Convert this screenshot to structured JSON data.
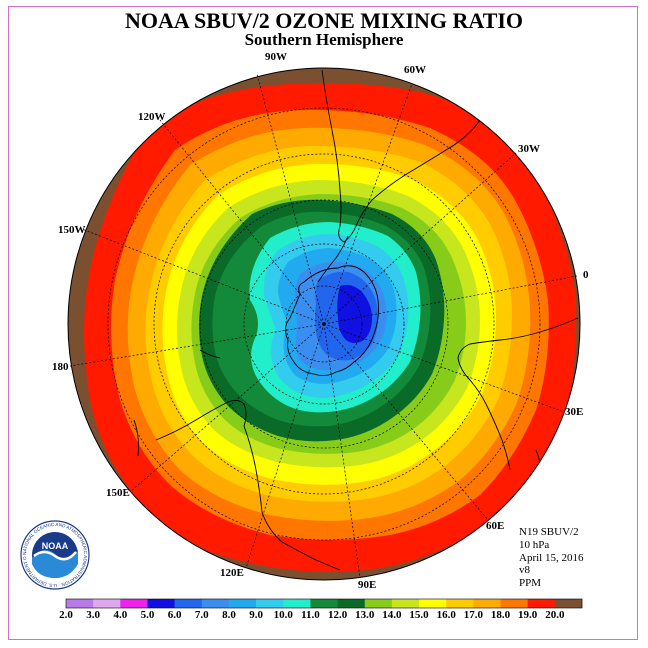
{
  "title": "NOAA SBUV/2 OZONE MIXING RATIO",
  "subtitle": "Southern Hemisphere",
  "longitude_labels": [
    "90W",
    "60W",
    "30W",
    "0",
    "30E",
    "60E",
    "90E",
    "120E",
    "150E",
    "180",
    "150W",
    "120W"
  ],
  "info": {
    "satellite": "N19 SBUV/2",
    "level": "10 hPa",
    "date": "April 15, 2016",
    "version": "v8",
    "units": "PPM"
  },
  "logo": {
    "text": "NOAA",
    "ring_text": "NATIONAL OCEANIC AND ATMOSPHERIC ADMINISTRATION · U.S. DEPARTMENT OF COMMERCE"
  },
  "colorbar": {
    "ticks": [
      "2.0",
      "3.0",
      "4.0",
      "5.0",
      "6.0",
      "7.0",
      "8.0",
      "9.0",
      "10.0",
      "11.0",
      "12.0",
      "13.0",
      "14.0",
      "15.0",
      "16.0",
      "17.0",
      "18.0",
      "19.0",
      "20.0"
    ],
    "colors": [
      "#b87ae8",
      "#e0a8ec",
      "#ee22ee",
      "#1010e0",
      "#2266ee",
      "#3a8ef0",
      "#22aaf0",
      "#33ccee",
      "#22eecc",
      "#128a3a",
      "#0a6a28",
      "#88cc1a",
      "#c8e61e",
      "#ffff00",
      "#ffcc00",
      "#ffaa00",
      "#ff7700",
      "#ff1a00",
      "#7a5030"
    ]
  },
  "map_colors": {
    "outer": "#7a5030",
    "r19": "#ff1a00",
    "r18": "#ff7700",
    "r17": "#ffaa00",
    "r16": "#ffcc00",
    "r15": "#ffff00",
    "r14": "#c8e61e",
    "r13": "#88cc1a",
    "r12": "#0a6a28",
    "r11": "#128a3a",
    "r10": "#22eecc",
    "r9": "#33ccee",
    "r8": "#22aaf0",
    "r7": "#3a8ef0",
    "r6": "#2266ee",
    "r5": "#1010e0"
  }
}
